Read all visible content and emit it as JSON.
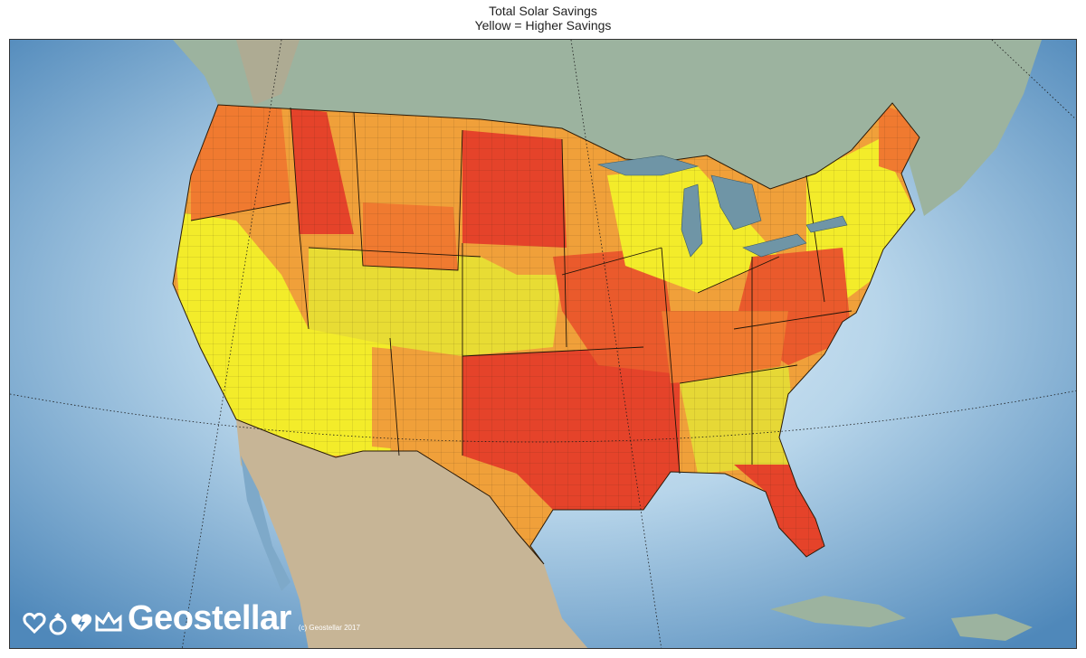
{
  "title": "Total Solar Savings",
  "subtitle": "Yellow = Higher Savings",
  "colors": {
    "ocean": "#5f97c6",
    "ocean_light": "#c9e1f0",
    "land_mexico": "#c9b99c",
    "land_canada": "#9cb5a2",
    "lakes": "#6f95a6",
    "high_savings": "#f3ec2a",
    "mid_high": "#e6d836",
    "mid": "#f0a03a",
    "mid_low": "#f07a30",
    "low_savings": "#e5432a"
  },
  "brand": {
    "name": "Geostellar",
    "copyright": "(c) Geostellar 2017",
    "icons": [
      "heart-icon",
      "ring-icon",
      "lightning-heart-icon",
      "crown-icon"
    ]
  }
}
